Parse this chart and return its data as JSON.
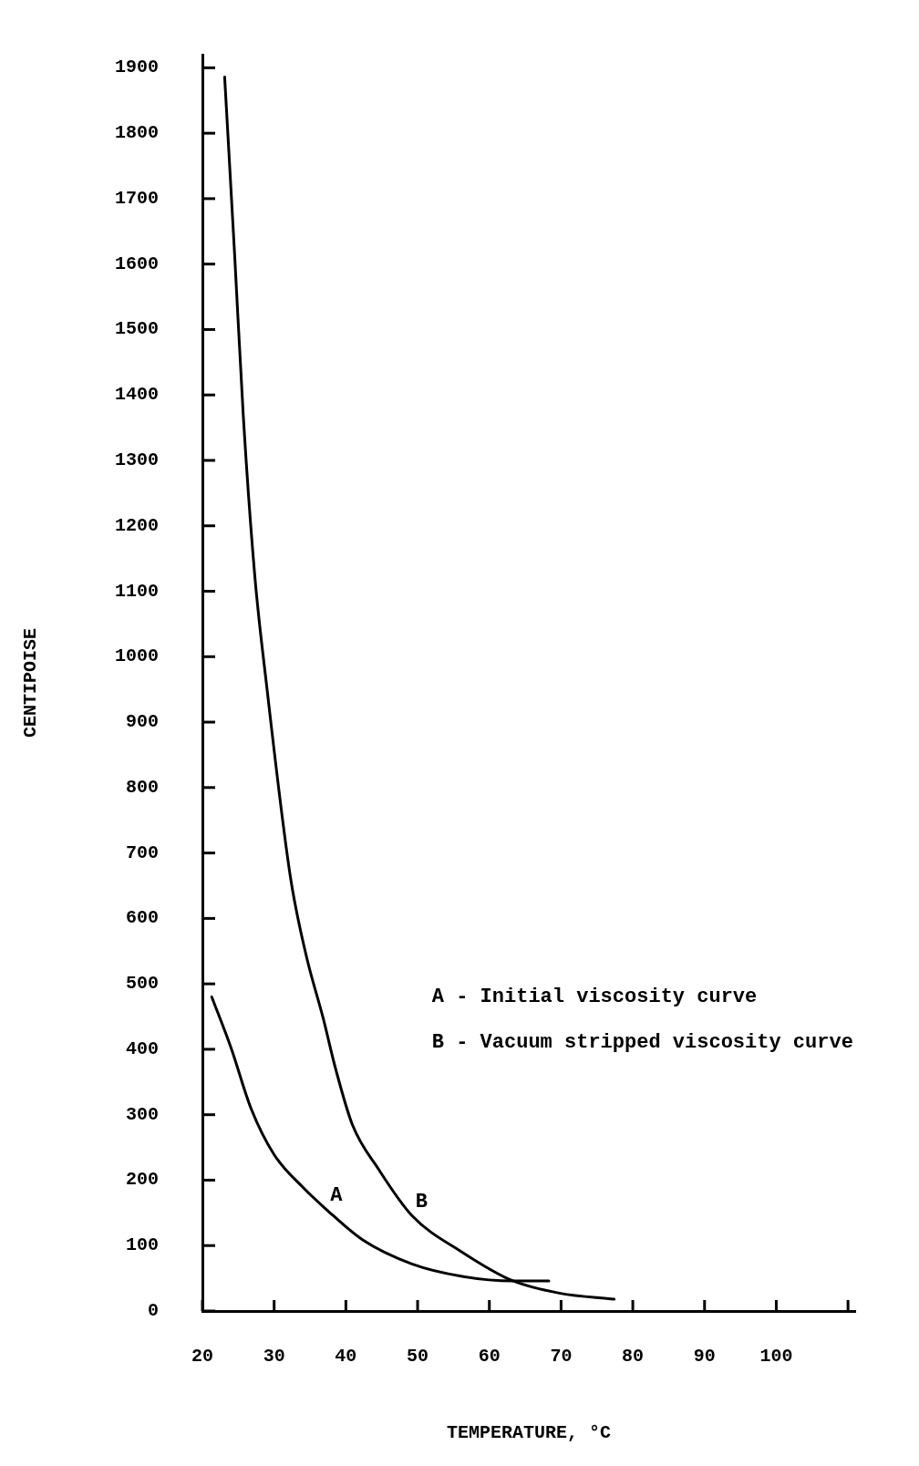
{
  "chart_data": {
    "type": "line",
    "xlabel": "TEMPERATURE, °C",
    "ylabel": "CENTIPOISE",
    "xlim": [
      20,
      111
    ],
    "xticks": [
      20,
      30,
      40,
      50,
      60,
      70,
      80,
      90,
      100,
      {
        "value": 110,
        "label": null
      }
    ],
    "ylim": [
      0,
      1920
    ],
    "yticks": [
      0,
      100,
      200,
      300,
      400,
      500,
      600,
      700,
      800,
      900,
      1000,
      1100,
      1200,
      1300,
      1400,
      1500,
      1600,
      1700,
      1800,
      1900
    ],
    "grid": false,
    "legend": false,
    "marker": "none",
    "line_style": "solid",
    "series": [
      {
        "name": "A",
        "color": "#000000",
        "x": [
          21.3,
          24.0,
          26.8,
          30.0,
          34.1,
          37.3,
          42.3,
          49.2,
          56.2,
          63.3,
          68.3
        ],
        "values": [
          480,
          402,
          309,
          239,
          188,
          155,
          109,
          72,
          53,
          46,
          46
        ]
      },
      {
        "name": "B",
        "color": "#000000",
        "x": [
          23.1,
          24.5,
          25.7,
          27.3,
          28.9,
          32.3,
          34.5,
          36.8,
          38.6,
          40.9,
          44.6,
          49.2,
          56.2,
          63.3,
          69.9,
          77.4
        ],
        "values": [
          1886,
          1613,
          1368,
          1124,
          961,
          661,
          542,
          449,
          369,
          285,
          216,
          146,
          90,
          46,
          27,
          18
        ]
      }
    ],
    "annotations": [
      "A - Initial viscosity curve",
      "B - Vacuum stripped viscosity curve"
    ]
  }
}
